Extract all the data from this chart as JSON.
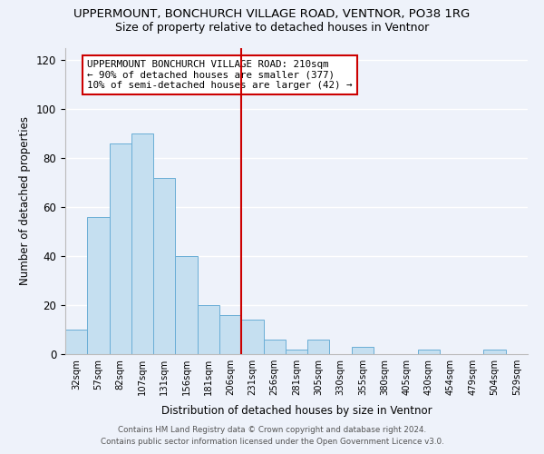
{
  "title": "UPPERMOUNT, BONCHURCH VILLAGE ROAD, VENTNOR, PO38 1RG",
  "subtitle": "Size of property relative to detached houses in Ventnor",
  "xlabel": "Distribution of detached houses by size in Ventnor",
  "ylabel": "Number of detached properties",
  "bar_color": "#c5dff0",
  "bar_edge_color": "#6aaed6",
  "categories": [
    "32sqm",
    "57sqm",
    "82sqm",
    "107sqm",
    "131sqm",
    "156sqm",
    "181sqm",
    "206sqm",
    "231sqm",
    "256sqm",
    "281sqm",
    "305sqm",
    "330sqm",
    "355sqm",
    "380sqm",
    "405sqm",
    "430sqm",
    "454sqm",
    "479sqm",
    "504sqm",
    "529sqm"
  ],
  "values": [
    10,
    56,
    86,
    90,
    72,
    40,
    20,
    16,
    14,
    6,
    2,
    6,
    0,
    3,
    0,
    0,
    2,
    0,
    0,
    2,
    0
  ],
  "vline_x": 7.5,
  "vline_color": "#cc0000",
  "annotation_title": "UPPERMOUNT BONCHURCH VILLAGE ROAD: 210sqm",
  "annotation_line1": "← 90% of detached houses are smaller (377)",
  "annotation_line2": "10% of semi-detached houses are larger (42) →",
  "ylim": [
    0,
    125
  ],
  "yticks": [
    0,
    20,
    40,
    60,
    80,
    100,
    120
  ],
  "footer1": "Contains HM Land Registry data © Crown copyright and database right 2024.",
  "footer2": "Contains public sector information licensed under the Open Government Licence v3.0.",
  "background_color": "#eef2fa"
}
